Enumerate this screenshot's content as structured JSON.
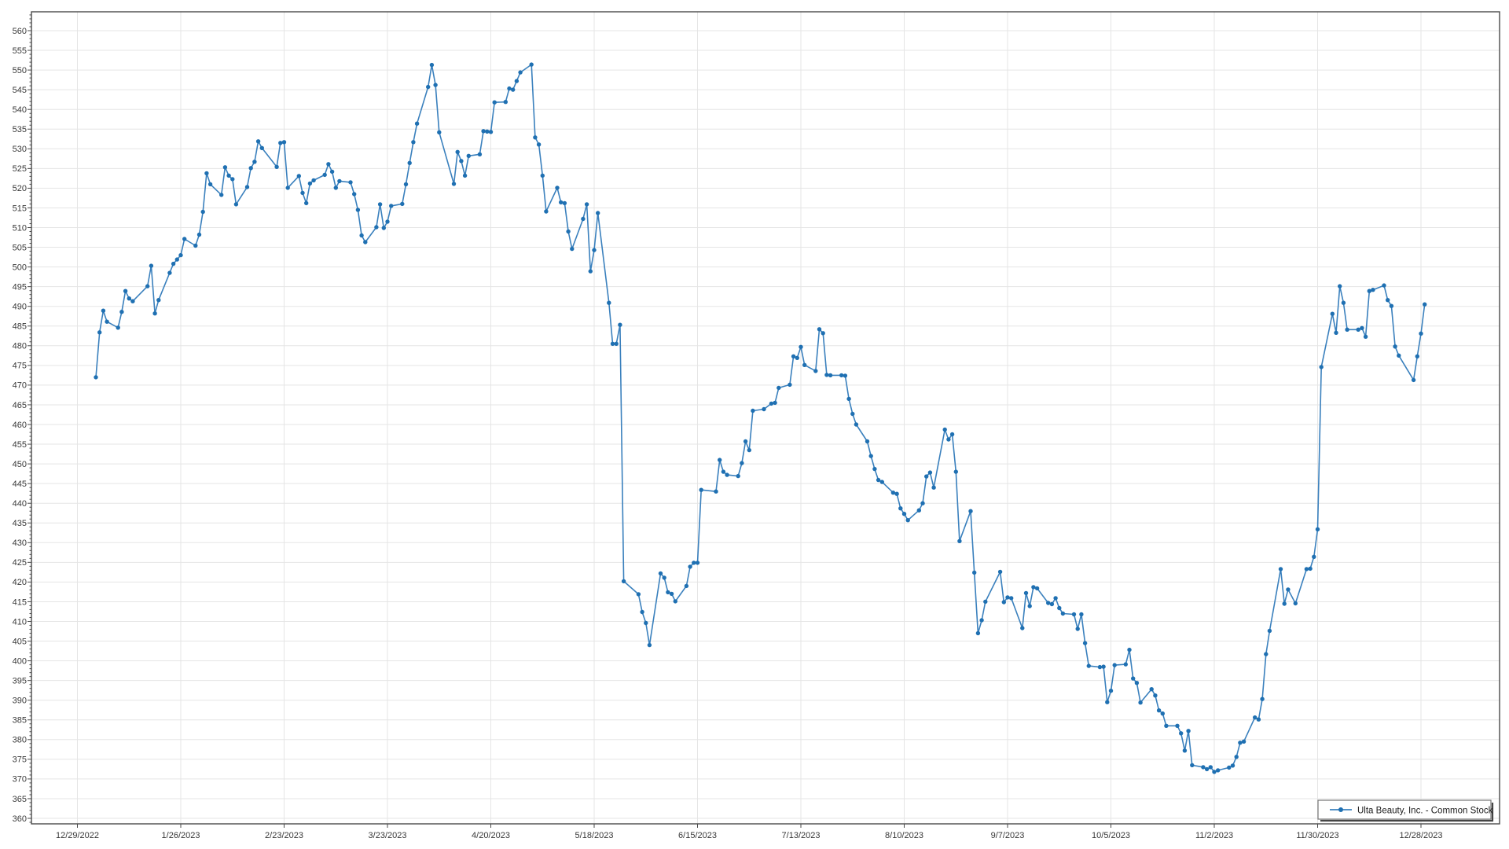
{
  "chart_data": {
    "type": "line",
    "title": "",
    "xlabel": "",
    "ylabel": "",
    "legend": {
      "label": "Ulta Beauty, Inc. - Common Stock",
      "position": "bottom-right"
    },
    "y_axis": {
      "min": 360,
      "max": 560,
      "tick_step": 5,
      "minor_tick_step": 1
    },
    "x_axis": {
      "base_date": "12/29/2022",
      "tick_interval_days": 28,
      "tick_labels": [
        "12/29/2022",
        "1/26/2023",
        "2/23/2023",
        "3/23/2023",
        "4/20/2023",
        "5/18/2023",
        "6/15/2023",
        "7/13/2023",
        "8/10/2023",
        "9/7/2023",
        "10/5/2023",
        "11/2/2023",
        "11/30/2023",
        "12/28/2023"
      ]
    },
    "grid": true,
    "colors": {
      "line": "#3a80bd",
      "marker": "#1f70b2",
      "grid": "#e5e5e5",
      "axis_border": "#4a4a4a",
      "tick": "#4a4a4a",
      "label_text": "#383838",
      "legend_border": "#757575",
      "legend_shadow": "#454545",
      "background": "#ffffff"
    },
    "series": [
      {
        "name": "Ulta Beauty, Inc. - Common Stock",
        "dates": [
          "1/3/2023",
          "1/4/2023",
          "1/5/2023",
          "1/6/2023",
          "1/9/2023",
          "1/10/2023",
          "1/11/2023",
          "1/12/2023",
          "1/13/2023",
          "1/17/2023",
          "1/18/2023",
          "1/19/2023",
          "1/20/2023",
          "1/23/2023",
          "1/24/2023",
          "1/25/2023",
          "1/26/2023",
          "1/27/2023",
          "1/30/2023",
          "1/31/2023",
          "2/1/2023",
          "2/2/2023",
          "2/3/2023",
          "2/6/2023",
          "2/7/2023",
          "2/8/2023",
          "2/9/2023",
          "2/10/2023",
          "2/13/2023",
          "2/14/2023",
          "2/15/2023",
          "2/16/2023",
          "2/17/2023",
          "2/21/2023",
          "2/22/2023",
          "2/23/2023",
          "2/24/2023",
          "2/27/2023",
          "2/28/2023",
          "3/1/2023",
          "3/2/2023",
          "3/3/2023",
          "3/6/2023",
          "3/7/2023",
          "3/8/2023",
          "3/9/2023",
          "3/10/2023",
          "3/13/2023",
          "3/14/2023",
          "3/15/2023",
          "3/16/2023",
          "3/17/2023",
          "3/20/2023",
          "3/21/2023",
          "3/22/2023",
          "3/23/2023",
          "3/24/2023",
          "3/27/2023",
          "3/28/2023",
          "3/29/2023",
          "3/30/2023",
          "3/31/2023",
          "4/3/2023",
          "4/4/2023",
          "4/5/2023",
          "4/6/2023",
          "4/10/2023",
          "4/11/2023",
          "4/12/2023",
          "4/13/2023",
          "4/14/2023",
          "4/17/2023",
          "4/18/2023",
          "4/19/2023",
          "4/20/2023",
          "4/21/2023",
          "4/24/2023",
          "4/25/2023",
          "4/26/2023",
          "4/27/2023",
          "4/28/2023",
          "5/1/2023",
          "5/2/2023",
          "5/3/2023",
          "5/4/2023",
          "5/5/2023",
          "5/8/2023",
          "5/9/2023",
          "5/10/2023",
          "5/11/2023",
          "5/12/2023",
          "5/15/2023",
          "5/16/2023",
          "5/17/2023",
          "5/18/2023",
          "5/19/2023",
          "5/22/2023",
          "5/23/2023",
          "5/24/2023",
          "5/25/2023",
          "5/26/2023",
          "5/30/2023",
          "5/31/2023",
          "6/1/2023",
          "6/2/2023",
          "6/5/2023",
          "6/6/2023",
          "6/7/2023",
          "6/8/2023",
          "6/9/2023",
          "6/12/2023",
          "6/13/2023",
          "6/14/2023",
          "6/15/2023",
          "6/16/2023",
          "6/20/2023",
          "6/21/2023",
          "6/22/2023",
          "6/23/2023",
          "6/26/2023",
          "6/27/2023",
          "6/28/2023",
          "6/29/2023",
          "6/30/2023",
          "7/3/2023",
          "7/5/2023",
          "7/6/2023",
          "7/7/2023",
          "7/10/2023",
          "7/11/2023",
          "7/12/2023",
          "7/13/2023",
          "7/14/2023",
          "7/17/2023",
          "7/18/2023",
          "7/19/2023",
          "7/20/2023",
          "7/21/2023",
          "7/24/2023",
          "7/25/2023",
          "7/26/2023",
          "7/27/2023",
          "7/28/2023",
          "7/31/2023",
          "8/1/2023",
          "8/2/2023",
          "8/3/2023",
          "8/4/2023",
          "8/7/2023",
          "8/8/2023",
          "8/9/2023",
          "8/10/2023",
          "8/11/2023",
          "8/14/2023",
          "8/15/2023",
          "8/16/2023",
          "8/17/2023",
          "8/18/2023",
          "8/21/2023",
          "8/22/2023",
          "8/23/2023",
          "8/24/2023",
          "8/25/2023",
          "8/28/2023",
          "8/29/2023",
          "8/30/2023",
          "8/31/2023",
          "9/1/2023",
          "9/5/2023",
          "9/6/2023",
          "9/7/2023",
          "9/8/2023",
          "9/11/2023",
          "9/12/2023",
          "9/13/2023",
          "9/14/2023",
          "9/15/2023",
          "9/18/2023",
          "9/19/2023",
          "9/20/2023",
          "9/21/2023",
          "9/22/2023",
          "9/25/2023",
          "9/26/2023",
          "9/27/2023",
          "9/28/2023",
          "9/29/2023",
          "10/2/2023",
          "10/3/2023",
          "10/4/2023",
          "10/5/2023",
          "10/6/2023",
          "10/9/2023",
          "10/10/2023",
          "10/11/2023",
          "10/12/2023",
          "10/13/2023",
          "10/16/2023",
          "10/17/2023",
          "10/18/2023",
          "10/19/2023",
          "10/20/2023",
          "10/23/2023",
          "10/24/2023",
          "10/25/2023",
          "10/26/2023",
          "10/27/2023",
          "10/30/2023",
          "10/31/2023",
          "11/1/2023",
          "11/2/2023",
          "11/3/2023",
          "11/6/2023",
          "11/7/2023",
          "11/8/2023",
          "11/9/2023",
          "11/10/2023",
          "11/13/2023",
          "11/14/2023",
          "11/15/2023",
          "11/16/2023",
          "11/17/2023",
          "11/20/2023",
          "11/21/2023",
          "11/22/2023",
          "11/24/2023",
          "11/27/2023",
          "11/28/2023",
          "11/29/2023",
          "11/30/2023",
          "12/1/2023",
          "12/4/2023",
          "12/5/2023",
          "12/6/2023",
          "12/7/2023",
          "12/8/2023",
          "12/11/2023",
          "12/12/2023",
          "12/13/2023",
          "12/14/2023",
          "12/15/2023",
          "12/18/2023",
          "12/19/2023",
          "12/20/2023",
          "12/21/2023",
          "12/22/2023",
          "12/26/2023",
          "12/27/2023",
          "12/28/2023",
          "12/29/2023"
        ],
        "values": [
          472.0,
          483.4,
          488.9,
          486.1,
          484.6,
          488.6,
          493.9,
          492.0,
          491.3,
          495.1,
          500.3,
          488.2,
          491.6,
          498.5,
          500.8,
          501.9,
          503.0,
          507.1,
          505.4,
          508.2,
          514.0,
          523.8,
          521.0,
          518.3,
          525.3,
          523.2,
          522.3,
          515.9,
          520.3,
          525.1,
          526.7,
          531.9,
          530.2,
          525.4,
          531.5,
          531.7,
          520.1,
          523.1,
          518.8,
          516.2,
          521.2,
          522.0,
          523.4,
          526.1,
          524.2,
          520.1,
          521.8,
          521.5,
          518.5,
          514.5,
          508.0,
          506.3,
          510.1,
          515.9,
          509.9,
          511.5,
          515.5,
          516.0,
          521.0,
          526.4,
          531.7,
          536.4,
          545.7,
          551.3,
          546.2,
          534.2,
          521.1,
          529.2,
          526.9,
          523.2,
          528.2,
          528.6,
          534.5,
          534.4,
          534.3,
          541.8,
          541.9,
          545.3,
          545.0,
          547.2,
          549.4,
          551.4,
          532.9,
          531.1,
          523.2,
          514.1,
          520.1,
          516.4,
          516.2,
          509.0,
          504.6,
          512.2,
          515.9,
          498.9,
          504.3,
          513.7,
          490.9,
          480.5,
          480.5,
          485.3,
          420.2,
          416.9,
          412.4,
          409.6,
          404.0,
          422.2,
          421.1,
          417.4,
          417.0,
          415.1,
          419.0,
          423.9,
          424.9,
          424.9,
          443.4,
          443.0,
          451.0,
          448.0,
          447.2,
          446.9,
          450.2,
          455.7,
          453.5,
          463.5,
          463.9,
          465.3,
          465.5,
          469.3,
          470.1,
          477.3,
          476.9,
          479.7,
          475.1,
          473.6,
          484.2,
          483.2,
          472.6,
          472.5,
          472.5,
          472.4,
          466.5,
          462.7,
          460.0,
          455.7,
          452.0,
          448.7,
          445.9,
          445.4,
          442.7,
          442.4,
          438.7,
          437.3,
          435.7,
          438.2,
          440.0,
          446.8,
          447.8,
          444.0,
          458.7,
          456.2,
          457.5,
          448.0,
          430.4,
          438.0,
          422.4,
          407.0,
          410.3,
          415.0,
          422.6,
          414.9,
          416.1,
          415.9,
          408.3,
          417.2,
          413.9,
          418.7,
          418.4,
          414.7,
          414.4,
          415.9,
          413.4,
          412.0,
          411.8,
          408.1,
          411.8,
          404.5,
          398.7,
          398.4,
          398.5,
          389.5,
          392.4,
          398.9,
          399.1,
          402.8,
          395.5,
          394.4,
          389.4,
          392.8,
          391.2,
          387.4,
          386.6,
          383.5,
          383.5,
          381.6,
          377.2,
          382.2,
          373.5,
          373.0,
          372.5,
          373.0,
          371.8,
          372.2,
          372.9,
          373.4,
          375.6,
          379.2,
          379.5,
          385.6,
          385.1,
          390.3,
          401.7,
          407.6,
          423.3,
          414.5,
          418.1,
          414.6,
          423.3,
          423.4,
          426.4,
          433.4,
          474.6,
          488.1,
          483.3,
          495.1,
          490.9,
          484.1,
          484.1,
          484.5,
          482.3,
          493.9,
          494.2,
          495.3,
          491.6,
          490.1,
          479.8,
          477.5,
          471.3,
          477.3,
          483.1,
          490.5
        ]
      }
    ]
  }
}
